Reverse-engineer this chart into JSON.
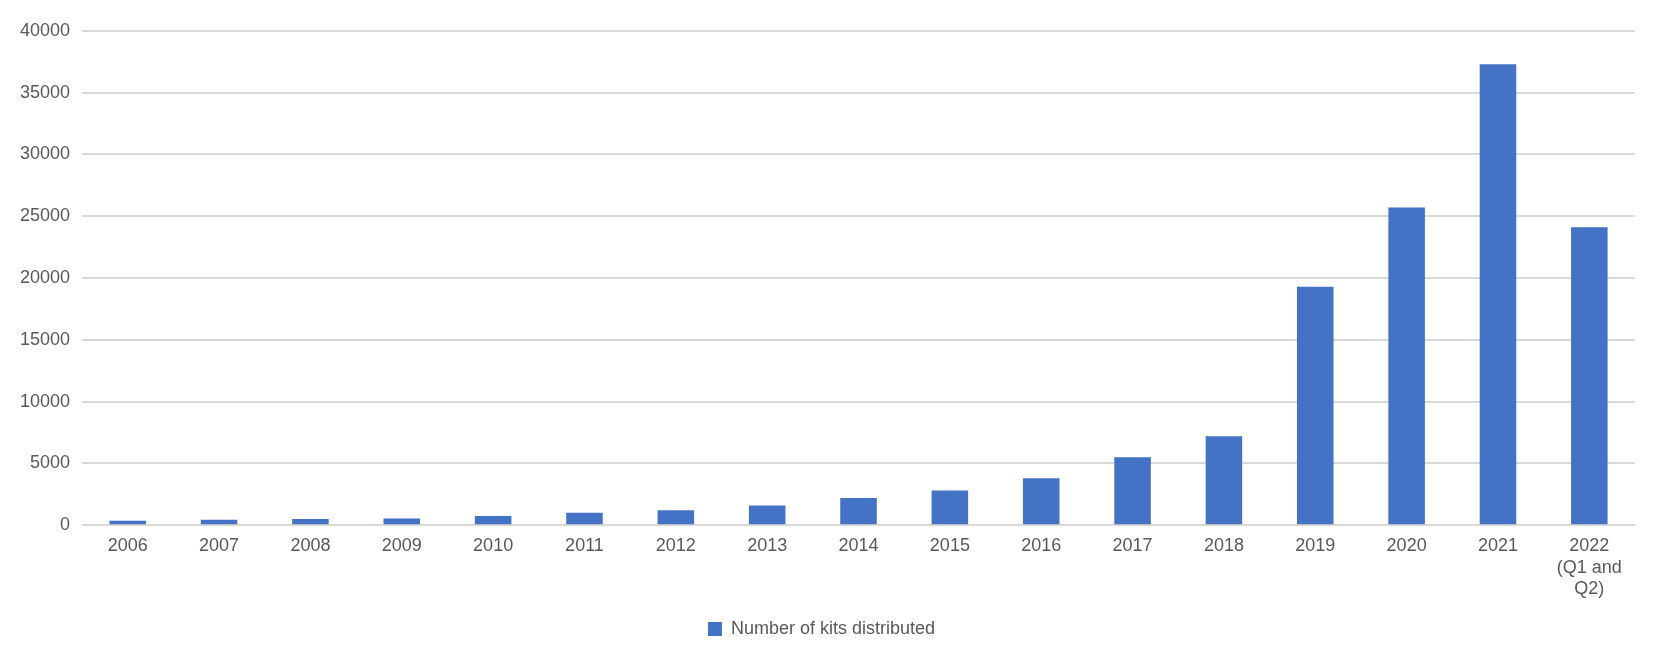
{
  "chart_data": {
    "type": "bar",
    "categories": [
      "2006",
      "2007",
      "2008",
      "2009",
      "2010",
      "2011",
      "2012",
      "2013",
      "2014",
      "2015",
      "2016",
      "2017",
      "2018",
      "2019",
      "2020",
      "2021",
      "2022 (Q1 and Q2)"
    ],
    "series": [
      {
        "name": "Number of kits distributed",
        "color": "#4472c4",
        "values": [
          350,
          450,
          500,
          550,
          750,
          1000,
          1200,
          1600,
          2200,
          2800,
          3800,
          5500,
          7200,
          19300,
          25700,
          37300,
          24100
        ]
      }
    ],
    "ylim": [
      0,
      40000
    ],
    "yticks": [
      0,
      5000,
      10000,
      15000,
      20000,
      25000,
      30000,
      35000,
      40000
    ],
    "grid": "y",
    "legend": "bottom"
  }
}
